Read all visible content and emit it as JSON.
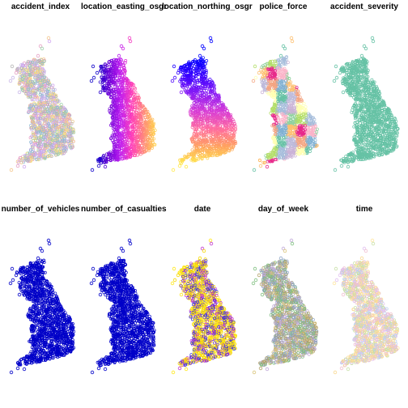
{
  "figure": {
    "background": "#ffffff",
    "layout": "2 rows x 5 columns of small-multiple maps of Great Britain, point markers as open circles",
    "marker": "open-circle"
  },
  "panels": [
    {
      "title": "accident_index",
      "scheme": "mixed",
      "colors": [
        "#e6a0c4",
        "#9ad0a8",
        "#c9b7e8",
        "#f4c58a",
        "#8fbcd4",
        "#f5e08a",
        "#b5b5b5",
        "#cfa6f0"
      ]
    },
    {
      "title": "location_easting_osgr",
      "scheme": "gradient-x",
      "colors": [
        "#0d00c9",
        "#6b00d6",
        "#c01ff0",
        "#ff40b8",
        "#ff8a7a",
        "#ffd54a"
      ]
    },
    {
      "title": "location_northing_osgr",
      "scheme": "gradient-y",
      "colors": [
        "#0000ff",
        "#3a00ff",
        "#8a1cf5",
        "#d63ad6",
        "#ff6aa0",
        "#ffa060",
        "#ffe84a"
      ]
    },
    {
      "title": "police_force",
      "scheme": "regions",
      "colors": [
        "#8fd19e",
        "#f4a582",
        "#a6bddb",
        "#fdbf6f",
        "#ffffb3",
        "#fbb4c9",
        "#bebada",
        "#b3de69",
        "#80b1d3",
        "#cab2d6",
        "#e7298a",
        "#66c2a5"
      ]
    },
    {
      "title": "accident_severity",
      "scheme": "single",
      "colors": [
        "#66c2a5"
      ]
    },
    {
      "title": "number_of_vehicles",
      "scheme": "single",
      "colors": [
        "#0000c8"
      ]
    },
    {
      "title": "number_of_casualties",
      "scheme": "single",
      "colors": [
        "#0000c8"
      ]
    },
    {
      "title": "date",
      "scheme": "yellow-purple",
      "colors": [
        "#ffe81a",
        "#f5d800",
        "#c03ad0",
        "#6a2ec8",
        "#3a3ad8"
      ]
    },
    {
      "title": "day_of_week",
      "scheme": "mixed",
      "colors": [
        "#b3a26a",
        "#7fbf7f",
        "#c0a9d8",
        "#d9c47a",
        "#8fa7c8",
        "#a0a0a0"
      ]
    },
    {
      "title": "time",
      "scheme": "mixed",
      "colors": [
        "#ffe6a0",
        "#f0c0d0",
        "#c8e0a8",
        "#b8d0f0",
        "#e0c0f0",
        "#f8d890"
      ]
    }
  ]
}
